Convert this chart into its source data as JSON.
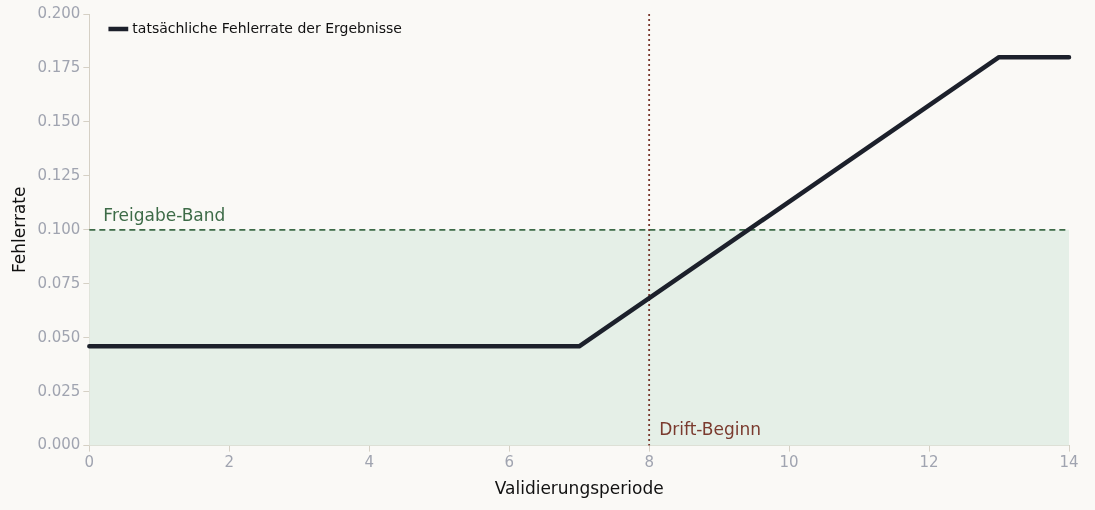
{
  "chart_data": {
    "type": "line",
    "xlabel": "Validierungsperiode",
    "ylabel": "Fehlerrate",
    "xlim": [
      0,
      14
    ],
    "xticks": [
      0,
      2,
      4,
      6,
      8,
      10,
      12,
      14
    ],
    "ylim": [
      0,
      0.2
    ],
    "yticks": [
      {
        "value": 0,
        "label": "0.000"
      },
      {
        "value": 0.025,
        "label": "0.025"
      },
      {
        "value": 0.05,
        "label": "0.050"
      },
      {
        "value": 0.075,
        "label": "0.075"
      },
      {
        "value": 0.1,
        "label": "0.100"
      },
      {
        "value": 0.125,
        "label": "0.125"
      },
      {
        "value": 0.15,
        "label": "0.150"
      },
      {
        "value": 0.175,
        "label": "0.175"
      },
      {
        "value": 0.2,
        "label": "0.200"
      }
    ],
    "series": [
      {
        "name": "tatsächliche Fehlerrate der Ergebnisse",
        "color": "#1c202b",
        "x": [
          0,
          7,
          13,
          14
        ],
        "values": [
          0.046,
          0.046,
          0.18,
          0.18
        ]
      }
    ],
    "bands": [
      {
        "axis": "y",
        "from": 0,
        "to": 0.1,
        "label": "Freigabe-Band",
        "color": "#e5efe7"
      }
    ],
    "ref_lines": [
      {
        "axis": "y",
        "value": 0.1,
        "color": "#3d6b47",
        "line_style": "dashed"
      },
      {
        "axis": "x",
        "value": 8,
        "label": "Drift-Beginn",
        "color": "#7a3a2e",
        "line_style": "dotted"
      }
    ],
    "grid": false,
    "legend": "top left",
    "marker": "none",
    "line_style": "solid"
  }
}
